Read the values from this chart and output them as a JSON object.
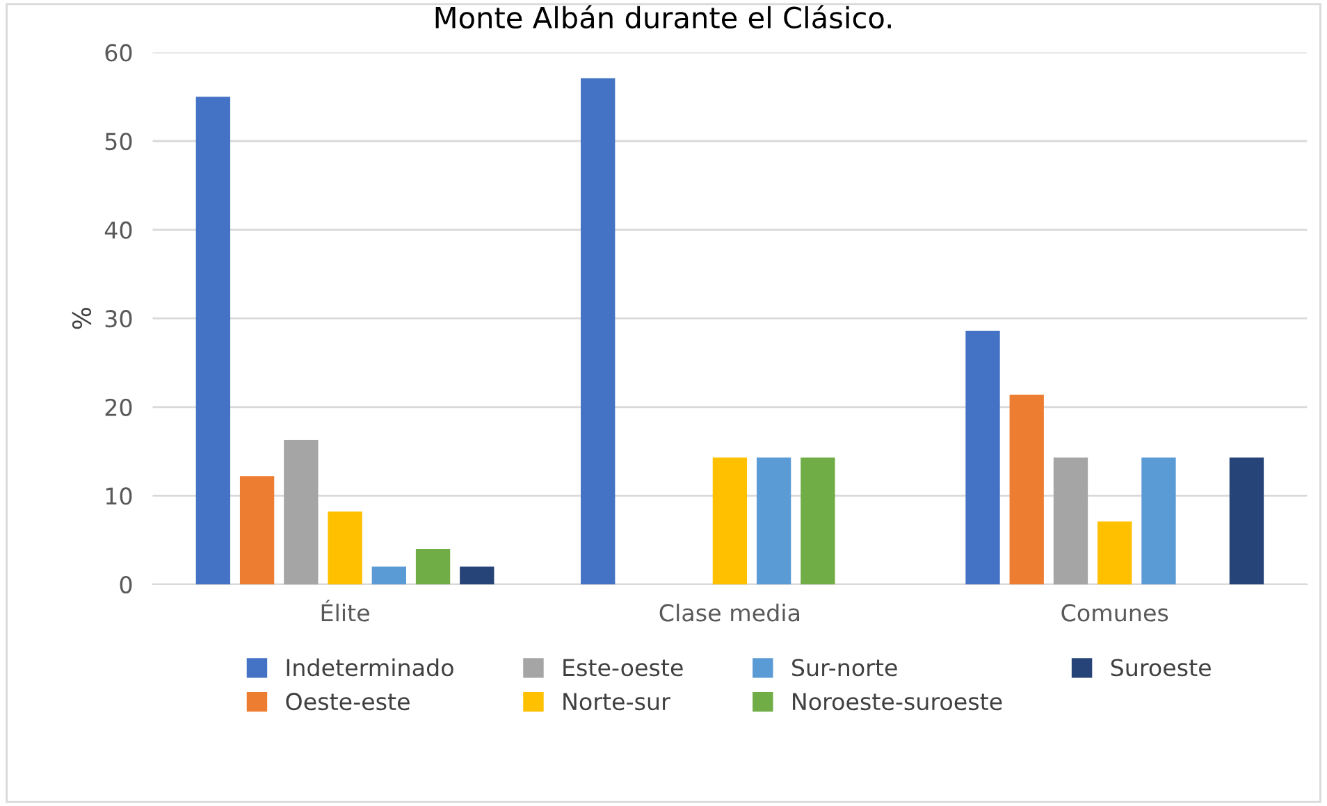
{
  "chart_data": {
    "type": "bar",
    "title": "Monte Albán durante el Clásico.",
    "ylabel": "%",
    "categories": [
      "Élite",
      "Clase media",
      "Comunes"
    ],
    "series": [
      {
        "name": "Indeterminado",
        "color": "#4472c4",
        "values": [
          55,
          57.1,
          28.6
        ]
      },
      {
        "name": "Oeste-este",
        "color": "#ed7d31",
        "values": [
          12.2,
          0,
          21.4
        ]
      },
      {
        "name": "Este-oeste",
        "color": "#a5a5a5",
        "values": [
          16.3,
          0,
          14.3
        ]
      },
      {
        "name": "Norte-sur",
        "color": "#ffc000",
        "values": [
          8.2,
          14.3,
          7.1
        ]
      },
      {
        "name": "Sur-norte",
        "color": "#5b9bd5",
        "values": [
          2,
          14.3,
          14.3
        ]
      },
      {
        "name": "Noroeste-suroeste",
        "color": "#70ad47",
        "values": [
          4,
          14.3,
          0
        ]
      },
      {
        "name": "Suroeste",
        "color": "#264478",
        "values": [
          2,
          0,
          14.3
        ]
      }
    ],
    "ylim": [
      0,
      60
    ],
    "yticks": [
      0,
      10,
      20,
      30,
      40,
      50,
      60
    ],
    "grid": "y",
    "legend": "bottom"
  }
}
